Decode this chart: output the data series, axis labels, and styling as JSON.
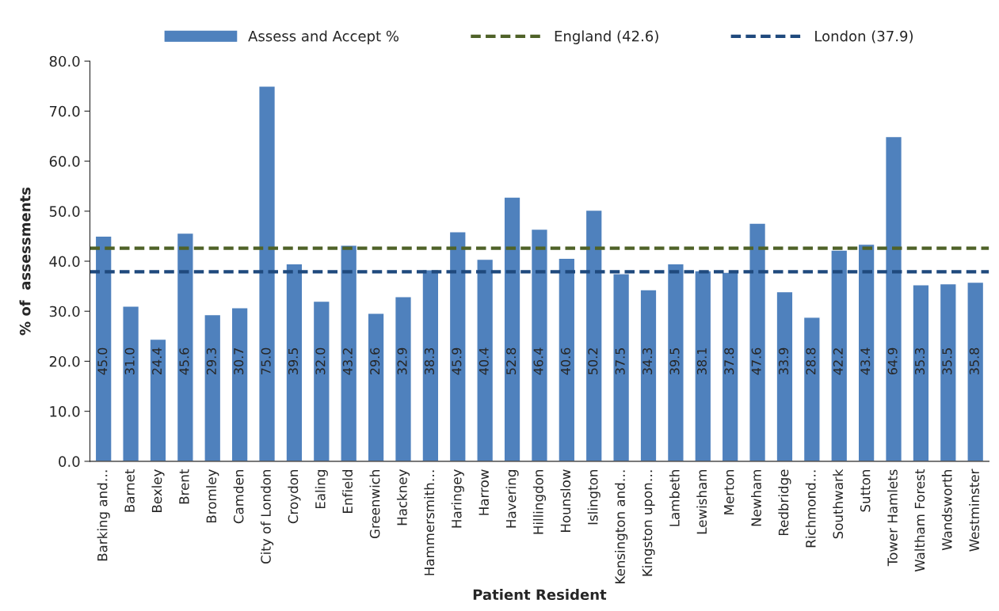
{
  "chart_data": {
    "type": "bar",
    "xlabel": "Patient Resident",
    "ylabel": "% of  assessments",
    "categories": [
      "Barking and…",
      "Barnet",
      "Bexley",
      "Brent",
      "Bromley",
      "Camden",
      "City of London",
      "Croydon",
      "Ealing",
      "Enfield",
      "Greenwich",
      "Hackney",
      "Hammersmith…",
      "Haringey",
      "Harrow",
      "Havering",
      "Hillingdon",
      "Hounslow",
      "Islington",
      "Kensington and…",
      "Kingston upon…",
      "Lambeth",
      "Lewisham",
      "Merton",
      "Newham",
      "Redbridge",
      "Richmond…",
      "Southwark",
      "Sutton",
      "Tower Hamlets",
      "Waltham Forest",
      "Wandsworth",
      "Westminster"
    ],
    "series": [
      {
        "name": "Assess and Accept %",
        "color": "#4f81bd",
        "values": [
          45.0,
          31.0,
          24.4,
          45.6,
          29.3,
          30.7,
          75.0,
          39.5,
          32.0,
          43.2,
          29.6,
          32.9,
          38.3,
          45.9,
          40.4,
          52.8,
          46.4,
          40.6,
          50.2,
          37.5,
          34.3,
          39.5,
          38.1,
          37.8,
          47.6,
          33.9,
          28.8,
          42.2,
          43.4,
          64.9,
          35.3,
          35.5,
          35.8
        ],
        "value_labels": [
          "45.0",
          "31.0",
          "24.4",
          "45.6",
          "29.3",
          "30.7",
          "75.0",
          "39.5",
          "32.0",
          "43.2",
          "29.6",
          "32.9",
          "38.3",
          "45.9",
          "40.4",
          "52.8",
          "46.4",
          "40.6",
          "50.2",
          "37.5",
          "34.3",
          "39.5",
          "38.1",
          "37.8",
          "47.6",
          "33.9",
          "28.8",
          "42.2",
          "43.4",
          "64.9",
          "35.3",
          "35.5",
          "35.8"
        ]
      }
    ],
    "ref_lines": [
      {
        "axis": "y",
        "value": 42.6,
        "label": "England (42.6)",
        "color": "#4f6228",
        "line_style": "dashed"
      },
      {
        "axis": "y",
        "value": 37.9,
        "label": "London (37.9)",
        "color": "#1f497d",
        "line_style": "dashed"
      }
    ],
    "ylim": [
      0,
      80
    ],
    "yticks": [
      {
        "value": 0,
        "label": "0.0"
      },
      {
        "value": 10,
        "label": "10.0"
      },
      {
        "value": 20,
        "label": "20.0"
      },
      {
        "value": 30,
        "label": "30.0"
      },
      {
        "value": 40,
        "label": "40.0"
      },
      {
        "value": 50,
        "label": "50.0"
      },
      {
        "value": 60,
        "label": "60.0"
      },
      {
        "value": 70,
        "label": "70.0"
      },
      {
        "value": 80,
        "label": "80.0"
      }
    ],
    "grid": false,
    "legend": "top"
  }
}
